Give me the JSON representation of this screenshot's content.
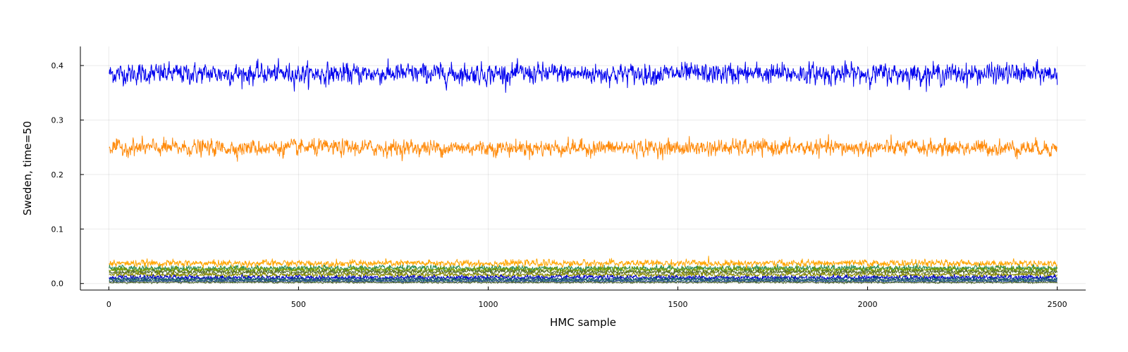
{
  "chart_data": {
    "type": "line",
    "title": "",
    "xlabel": "HMC sample",
    "ylabel": "Sweden, time=50",
    "xlim": [
      -75,
      2575
    ],
    "ylim": [
      -0.012,
      0.435
    ],
    "xticks": [
      0,
      500,
      1000,
      1500,
      2000,
      2500
    ],
    "yticks": [
      0.0,
      0.1,
      0.2,
      0.3,
      0.4
    ],
    "xtick_labels": [
      "0",
      "500",
      "1000",
      "1500",
      "2000",
      "2500"
    ],
    "ytick_labels": [
      "0.0",
      "0.1",
      "0.2",
      "0.3",
      "0.4"
    ],
    "grid": true,
    "legend": "none",
    "n_samples": 2500,
    "series": [
      {
        "color": "#0000ee",
        "mean": 0.385,
        "noise": 0.009
      },
      {
        "color": "#ff8a0a",
        "mean": 0.249,
        "noise": 0.007
      },
      {
        "color": "#ffa500",
        "mean": 0.037,
        "noise": 0.003
      },
      {
        "color": "#2e8b57",
        "mean": 0.028,
        "noise": 0.0025
      },
      {
        "color": "#7a9a01",
        "mean": 0.025,
        "noise": 0.0025
      },
      {
        "color": "#556b2f",
        "mean": 0.021,
        "noise": 0.002
      },
      {
        "color": "#8b8b00",
        "mean": 0.016,
        "noise": 0.002
      },
      {
        "color": "#0000cd",
        "mean": 0.011,
        "noise": 0.002
      },
      {
        "color": "#1f4e79",
        "mean": 0.008,
        "noise": 0.0018
      },
      {
        "color": "#1e6b6b",
        "mean": 0.006,
        "noise": 0.0015
      },
      {
        "color": "#2f4f8f",
        "mean": 0.004,
        "noise": 0.0012
      },
      {
        "color": "#556b2f",
        "mean": 0.002,
        "noise": 0.0008
      }
    ]
  }
}
